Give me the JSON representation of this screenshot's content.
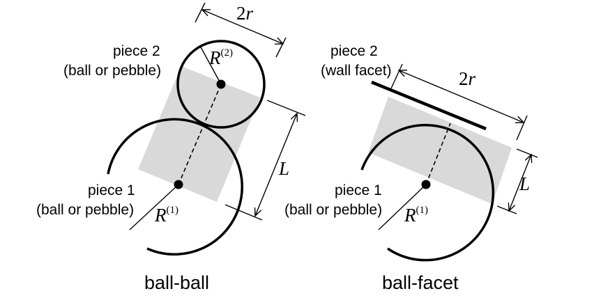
{
  "left": {
    "caption": "ball-ball",
    "piece2_title": "piece 2",
    "piece2_sub": "(ball or pebble)",
    "piece1_title": "piece 1",
    "piece1_sub": "(ball or pebble)",
    "radius2_symbol": "R",
    "radius2_sup": "(2)",
    "radius1_symbol": "R",
    "radius1_sup": "(1)",
    "width_num": "2",
    "width_var": "r",
    "length_label": "L"
  },
  "right": {
    "caption": "ball-facet",
    "piece2_title": "piece 2",
    "piece2_sub": "(wall facet)",
    "piece1_title": "piece 1",
    "piece1_sub": "(ball or pebble)",
    "radius1_symbol": "R",
    "radius1_sup": "(1)",
    "width_num": "2",
    "width_var": "r",
    "length_label": "L"
  },
  "colors": {
    "cylinder_fill": "#d9d9d9",
    "stroke": "#000000"
  }
}
